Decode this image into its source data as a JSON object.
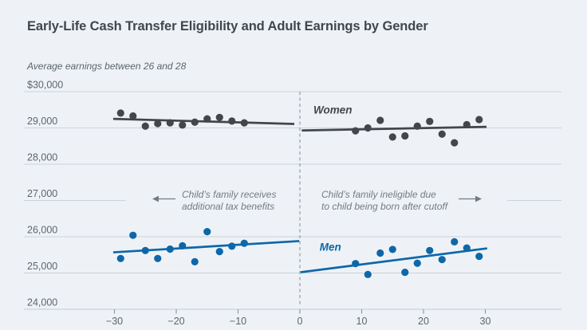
{
  "chart_data": {
    "type": "scatter",
    "title": "Early-Life Cash Transfer Eligibility and Adult Earnings by Gender",
    "subtitle": "Average earnings between 26 and 28",
    "x_axis": {
      "ticks": [
        -30,
        -20,
        -10,
        0,
        10,
        20,
        30
      ],
      "tick_labels": [
        "−30",
        "−20",
        "−10",
        "0",
        "10",
        "20",
        "30"
      ],
      "range_shown": [
        -45,
        42
      ]
    },
    "y_axis": {
      "ticks": [
        30000,
        29000,
        28000,
        27000,
        26000,
        25000,
        24000
      ],
      "tick_labels": [
        "$30,000",
        "29,000",
        "28,000",
        "27,000",
        "26,000",
        "25,000",
        "24,000"
      ],
      "range_shown": [
        24000,
        30000
      ]
    },
    "cutoff_x": 0,
    "grid": true,
    "legend_position": "inline-labels",
    "series": [
      {
        "name": "Women",
        "color": "#43474c",
        "label": {
          "text": "Women",
          "x": 2.2,
          "y": 29400
        },
        "points": [
          [
            -29,
            29410
          ],
          [
            -27,
            29330
          ],
          [
            -25,
            29050
          ],
          [
            -23,
            29120
          ],
          [
            -21,
            29140
          ],
          [
            -19,
            29080
          ],
          [
            -17,
            29160
          ],
          [
            -15,
            29250
          ],
          [
            -13,
            29290
          ],
          [
            -11,
            29190
          ],
          [
            -9,
            29140
          ],
          [
            9,
            28920
          ],
          [
            11,
            29000
          ],
          [
            13,
            29210
          ],
          [
            15,
            28750
          ],
          [
            17,
            28780
          ],
          [
            19,
            29050
          ],
          [
            21,
            29180
          ],
          [
            23,
            28830
          ],
          [
            25,
            28590
          ],
          [
            27,
            29090
          ],
          [
            29,
            29230
          ]
        ],
        "trend_left": [
          [
            -30.2,
            29250
          ],
          [
            -0.9,
            29110
          ]
        ],
        "trend_right": [
          [
            0.3,
            28930
          ],
          [
            30.2,
            29030
          ]
        ]
      },
      {
        "name": "Men",
        "color": "#0d67a9",
        "label": {
          "text": "Men",
          "x": 3.2,
          "y": 25620
        },
        "points": [
          [
            -29,
            25400
          ],
          [
            -27,
            26040
          ],
          [
            -25,
            25620
          ],
          [
            -23,
            25400
          ],
          [
            -21,
            25660
          ],
          [
            -19,
            25750
          ],
          [
            -17,
            25310
          ],
          [
            -15,
            26140
          ],
          [
            -13,
            25590
          ],
          [
            -11,
            25740
          ],
          [
            -9,
            25820
          ],
          [
            9,
            25260
          ],
          [
            11,
            24960
          ],
          [
            13,
            25550
          ],
          [
            15,
            25650
          ],
          [
            17,
            25020
          ],
          [
            19,
            25270
          ],
          [
            21,
            25620
          ],
          [
            23,
            25370
          ],
          [
            25,
            25860
          ],
          [
            27,
            25690
          ],
          [
            29,
            25460
          ]
        ],
        "trend_left": [
          [
            -30.2,
            25570
          ],
          [
            -0.1,
            25880
          ]
        ],
        "trend_right": [
          [
            0.1,
            25020
          ],
          [
            30.3,
            25680
          ]
        ]
      }
    ],
    "annotations": [
      {
        "id": "left",
        "lines": [
          "Child’s family receives",
          "additional tax benefits"
        ],
        "arrow_direction": "left"
      },
      {
        "id": "right",
        "lines": [
          "Child’s family ineligible due",
          "to child being born after cutoff"
        ],
        "arrow_direction": "right"
      }
    ],
    "colors": {
      "background": "#eef2f6",
      "gridline": "#c9d3da",
      "axis_text": "#5c656d",
      "annotation": "#717b84",
      "cutoff_line": "#939ea7",
      "title": "#3f464c"
    }
  }
}
